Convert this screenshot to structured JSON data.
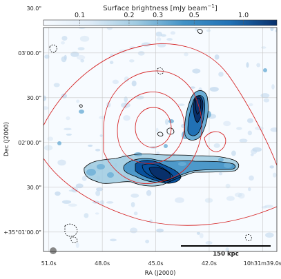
{
  "chart_data": {
    "type": "heatmap",
    "colorbar": {
      "title": "Surface brightness [mJy beam",
      "title_exp": "−1",
      "title_close": "]",
      "scale": "log",
      "range": [
        0.06,
        1.6
      ],
      "ticks": [
        {
          "value": 0.1,
          "label": "0.1"
        },
        {
          "value": 0.2,
          "label": "0.2"
        },
        {
          "value": 0.3,
          "label": "0.3"
        },
        {
          "value": 0.5,
          "label": "0.5"
        },
        {
          "value": 1.0,
          "label": "1.0"
        }
      ],
      "colormap": "Blues",
      "placement": "top"
    },
    "xlabel": "RA (J2000)",
    "ylabel": "Dec (J2000)",
    "xlim_sec": [
      51.3,
      38.2
    ],
    "ylim_arcsec": [
      47,
      197
    ],
    "xticks": [
      {
        "value": 51.0,
        "label": "51.0s"
      },
      {
        "value": 48.0,
        "label": "48.0s"
      },
      {
        "value": 45.0,
        "label": "45.0s"
      },
      {
        "value": 42.0,
        "label": "42.0s"
      },
      {
        "value": 39.0,
        "label": "10h31m39.0s"
      }
    ],
    "yticks": [
      {
        "value": 60,
        "label": "+35°01'00.0\""
      },
      {
        "value": 90,
        "label": "30.0\""
      },
      {
        "value": 120,
        "label": "02'00.0\""
      },
      {
        "value": 150,
        "label": "30.0\""
      },
      {
        "value": 180,
        "label": "03'00.0\""
      },
      {
        "value": 210,
        "label": "30.0\""
      }
    ],
    "grid": true,
    "sources": [
      {
        "name": "radio-tail-source",
        "ra_sec": 42.0,
        "dec_arcsec": 155,
        "peak": 1.5
      },
      {
        "name": "radio-bar-source",
        "ra_sec": 44.6,
        "dec_arcsec": 113,
        "peak": 1.2
      }
    ],
    "overlay_contours": "red",
    "scale_bar": {
      "label": "150 kpc",
      "placement": "bottom-right"
    },
    "beam": {
      "placement": "bottom-left"
    }
  },
  "colors": {
    "background": "#f7fbff",
    "grid": "#c8c8c8",
    "contour_black": "#000000",
    "contour_red": "#d62728",
    "beam": "#888888"
  }
}
